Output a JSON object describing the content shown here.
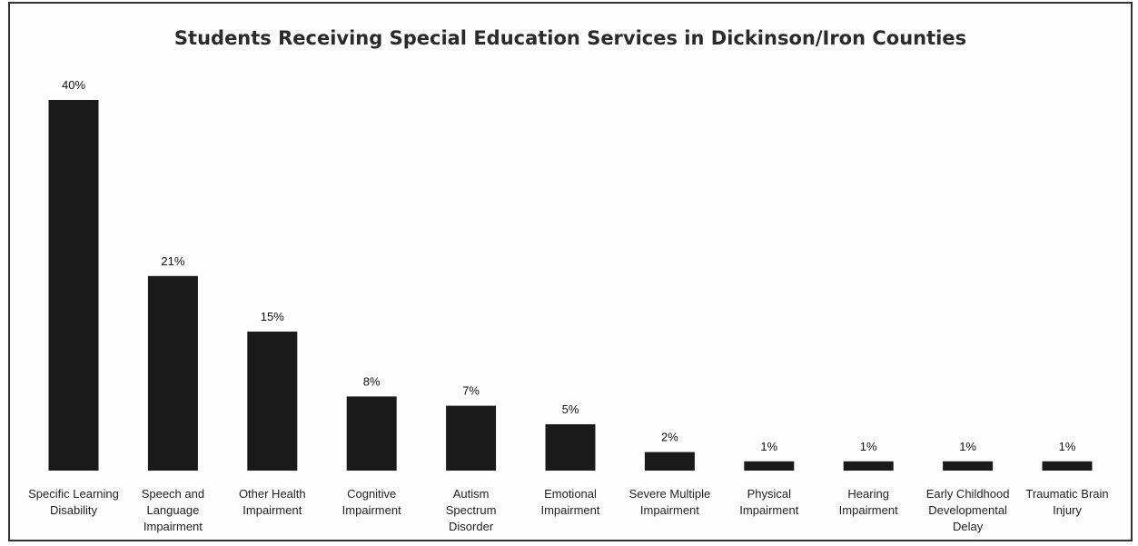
{
  "chart_data": {
    "type": "bar",
    "title": "Students Receiving Special Education Services in Dickinson/Iron Counties",
    "xlabel": "",
    "ylabel": "",
    "ylim": [
      0,
      40
    ],
    "grid": false,
    "categories": [
      "Specific Learning Disability",
      "Speech and Language Impairment",
      "Other Health Impairment",
      "Cognitive Impairment",
      "Autism Spectrum Disorder",
      "Emotional Impairment",
      "Severe Multiple Impairment",
      "Physical Impairment",
      "Hearing Impairment",
      "Early Childhood Developmental Delay",
      "Traumatic Brain Injury"
    ],
    "tick_lines": [
      [
        "Specific Learning",
        "Disability"
      ],
      [
        "Speech and",
        "Language",
        "Impairment"
      ],
      [
        "Other Health",
        "Impairment"
      ],
      [
        "Cognitive",
        "Impairment"
      ],
      [
        "Autism",
        "Spectrum",
        "Disorder"
      ],
      [
        "Emotional",
        "Impairment"
      ],
      [
        "Severe Multiple",
        "Impairment"
      ],
      [
        "Physical",
        "Impairment"
      ],
      [
        "Hearing",
        "Impairment"
      ],
      [
        "Early Childhood",
        "Developmental",
        "Delay"
      ],
      [
        "Traumatic Brain",
        "Injury"
      ]
    ],
    "values": [
      40,
      21,
      15,
      8,
      7,
      5,
      2,
      1,
      1,
      1,
      1
    ],
    "data_labels": [
      "40%",
      "21%",
      "15%",
      "8%",
      "7%",
      "5%",
      "2%",
      "1%",
      "1%",
      "1%",
      "1%"
    ],
    "bar_color": "#1a1a1a"
  }
}
